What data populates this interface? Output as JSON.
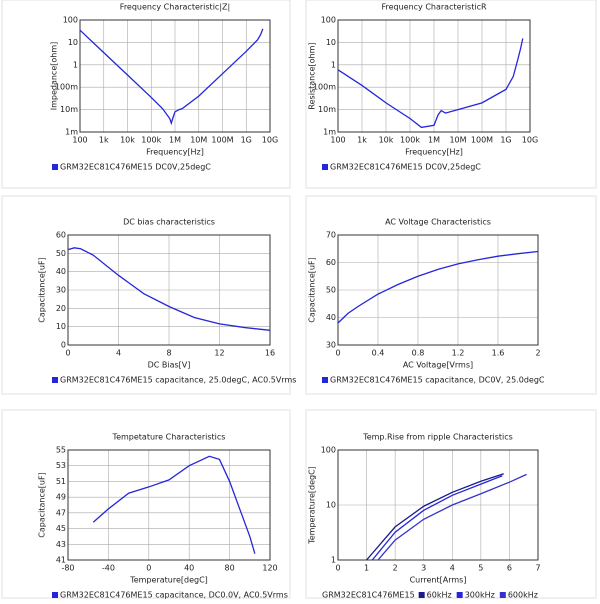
{
  "chart_data": [
    {
      "type": "line",
      "title": "Frequency  Characteristic|Z|",
      "x_label": "Frequency[Hz]",
      "y_label": "Impedance[ohm]",
      "xlog": true,
      "ylog": true,
      "grid": true,
      "xlim": [
        100,
        10000000000
      ],
      "ylim": [
        0.001,
        100
      ],
      "xticks": [
        100,
        {
          "value": 1000,
          "label": "1k"
        },
        {
          "value": 10000,
          "label": "10k"
        },
        {
          "value": 100000,
          "label": "100k"
        },
        {
          "value": 1000000,
          "label": "1M"
        },
        {
          "value": 10000000,
          "label": "10M"
        },
        {
          "value": 100000000,
          "label": "100M"
        },
        {
          "value": 1000000000,
          "label": "1G"
        },
        {
          "value": 10000000000,
          "label": "10G"
        }
      ],
      "yticks": [
        {
          "value": 0.001,
          "label": "1m"
        },
        {
          "value": 0.01,
          "label": "10m"
        },
        {
          "value": 0.1,
          "label": "100m"
        },
        1,
        10,
        100
      ],
      "series": [
        {
          "name": "GRM32EC81C476ME15 DC0V,25degC",
          "color": "#2626d9",
          "x": [
            100,
            1000,
            10000,
            100000,
            300000,
            600000,
            700000,
            800000,
            1000000,
            1500000,
            2000000,
            10000000,
            100000000,
            1000000000,
            3000000000,
            4000000000,
            5000000000
          ],
          "values": [
            35,
            3.5,
            0.35,
            0.035,
            0.011,
            0.004,
            0.0025,
            0.004,
            0.008,
            0.01,
            0.011,
            0.04,
            0.4,
            4,
            13,
            22,
            40
          ]
        }
      ]
    },
    {
      "type": "line",
      "title": "Frequency  CharacteristicR",
      "x_label": "Frequency[Hz]",
      "y_label": "Resistance[ohm]",
      "xlog": true,
      "ylog": true,
      "grid": true,
      "xlim": [
        100,
        10000000000
      ],
      "ylim": [
        0.001,
        100
      ],
      "xticks": [
        100,
        {
          "value": 1000,
          "label": "1k"
        },
        {
          "value": 10000,
          "label": "10k"
        },
        {
          "value": 100000,
          "label": "100k"
        },
        {
          "value": 1000000,
          "label": "1M"
        },
        {
          "value": 10000000,
          "label": "10M"
        },
        {
          "value": 100000000,
          "label": "100M"
        },
        {
          "value": 1000000000,
          "label": "1G"
        },
        {
          "value": 10000000000,
          "label": "10G"
        }
      ],
      "yticks": [
        {
          "value": 0.001,
          "label": "1m"
        },
        {
          "value": 0.01,
          "label": "10m"
        },
        {
          "value": 0.1,
          "label": "100m"
        },
        1,
        10,
        100
      ],
      "series": [
        {
          "name": "GRM32EC81C476ME15 DC0V,25degC",
          "color": "#2626d9",
          "x": [
            100,
            1000,
            10000,
            100000,
            300000,
            1000000,
            1500000,
            2000000,
            3000000,
            10000000,
            100000000,
            1000000000,
            2000000000,
            3000000000,
            4000000000,
            5000000000
          ],
          "values": [
            0.6,
            0.12,
            0.02,
            0.004,
            0.0016,
            0.002,
            0.006,
            0.009,
            0.007,
            0.01,
            0.02,
            0.08,
            0.3,
            1.5,
            5,
            15
          ]
        }
      ]
    },
    {
      "type": "line",
      "title": "DC bias characteristics",
      "x_label": "DC Bias[V]",
      "y_label": "Capacitance[uF]",
      "grid": true,
      "xlim": [
        0,
        16
      ],
      "ylim": [
        0,
        60
      ],
      "xticks": [
        0,
        4,
        8,
        12,
        16
      ],
      "yticks": [
        0,
        10,
        20,
        30,
        40,
        50,
        60
      ],
      "series": [
        {
          "name": "GRM32EC81C476ME15 capacitance, 25.0degC, AC0.5Vrms",
          "color": "#2626d9",
          "x": [
            0,
            0.5,
            1,
            2,
            4,
            6,
            8,
            10,
            12,
            14,
            16
          ],
          "values": [
            52,
            53,
            52.5,
            49,
            38,
            28,
            21,
            15,
            11.5,
            9.5,
            8
          ]
        }
      ]
    },
    {
      "type": "line",
      "title": "AC Voltage Characteristics",
      "x_label": "AC Voltage[Vrms]",
      "y_label": "Capacitance[uF]",
      "grid": true,
      "xlim": [
        0,
        2
      ],
      "ylim": [
        30,
        70
      ],
      "xticks": [
        0,
        0.4,
        0.8,
        1.2,
        1.6,
        2
      ],
      "yticks": [
        30,
        40,
        50,
        60,
        70
      ],
      "series": [
        {
          "name": "GRM32EC81C476ME15 capacitance, DC0V, 25.0degC",
          "color": "#2626d9",
          "x": [
            0,
            0.1,
            0.2,
            0.4,
            0.6,
            0.8,
            1,
            1.2,
            1.4,
            1.6,
            1.8,
            2
          ],
          "values": [
            38,
            41.5,
            44,
            48.5,
            52,
            55,
            57.5,
            59.5,
            61,
            62.3,
            63.2,
            64
          ]
        }
      ]
    },
    {
      "type": "line",
      "title": "Tempetature  Characteristics",
      "x_label": "Temperature[degC]",
      "y_label": "Capacitance[uF]",
      "grid": true,
      "xlim": [
        -80,
        120
      ],
      "ylim": [
        41,
        55
      ],
      "xticks": [
        -80,
        -40,
        0,
        40,
        80,
        120
      ],
      "yticks": [
        41,
        43,
        45,
        47,
        49,
        51,
        53,
        55
      ],
      "series": [
        {
          "name": "GRM32EC81C476ME15 capacitance, DC0.0V, AC0.5Vrms",
          "color": "#2626d9",
          "x": [
            -55,
            -40,
            -20,
            0,
            20,
            40,
            60,
            70,
            80,
            90,
            100,
            105
          ],
          "values": [
            45.8,
            47.5,
            49.5,
            50.3,
            51.2,
            53,
            54.2,
            53.8,
            51,
            47.5,
            44,
            41.8
          ]
        }
      ]
    },
    {
      "type": "line",
      "title": "Temp.Rise from ripple Characteristics",
      "x_label": "Current[Arms]",
      "y_label": "Temperature[degC]",
      "ylog": true,
      "grid": true,
      "xlim": [
        0,
        7
      ],
      "ylim": [
        1,
        100
      ],
      "xticks": [
        0,
        1,
        2,
        3,
        4,
        5,
        6,
        7
      ],
      "yticks": [
        1,
        10,
        100
      ],
      "legend_title": "GRM32EC81C476ME15",
      "series": [
        {
          "name": "60kHz",
          "color": "#1a1a8c",
          "x": [
            1,
            2,
            3,
            4,
            5,
            5.8
          ],
          "values": [
            1,
            4,
            9.5,
            17,
            27,
            37
          ]
        },
        {
          "name": "300kHz",
          "color": "#2626d9",
          "x": [
            1.2,
            2,
            3,
            4,
            5,
            5.75
          ],
          "values": [
            1,
            3.2,
            8,
            15,
            24,
            34
          ]
        },
        {
          "name": "600kHz",
          "color": "#3333cc",
          "x": [
            1.4,
            2,
            3,
            4,
            5,
            6,
            6.6
          ],
          "values": [
            1,
            2.3,
            5.5,
            10,
            16,
            26,
            36
          ]
        }
      ]
    }
  ]
}
